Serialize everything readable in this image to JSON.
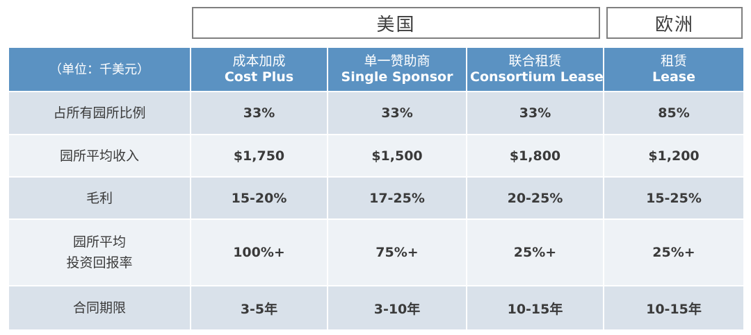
{
  "regions": {
    "us": "美国",
    "eu": "欧洲"
  },
  "table": {
    "unit_header": "（单位：千美元）",
    "columns": [
      {
        "zh": "成本加成",
        "en": "Cost Plus"
      },
      {
        "zh": "单一赞助商",
        "en": "Single Sponsor"
      },
      {
        "zh": "联合租赁",
        "en": "Consortium Lease"
      },
      {
        "zh": "租赁",
        "en": "Lease"
      }
    ],
    "rows": [
      {
        "label": "占所有园所比例",
        "values": [
          "33%",
          "33%",
          "33%",
          "85%"
        ]
      },
      {
        "label": "园所平均收入",
        "values": [
          "$1,750",
          "$1,500",
          "$1,800",
          "$1,200"
        ]
      },
      {
        "label": "毛利",
        "values": [
          "15-20%",
          "17-25%",
          "20-25%",
          "15-25%"
        ]
      },
      {
        "label_lines": [
          "园所平均",
          "投资回报率"
        ],
        "values": [
          "100%+",
          "75%+",
          "25%+",
          "25%+"
        ]
      },
      {
        "label": "合同期限",
        "values": [
          "3-5年",
          "3-10年",
          "10-15年",
          "10-15年"
        ]
      }
    ]
  }
}
